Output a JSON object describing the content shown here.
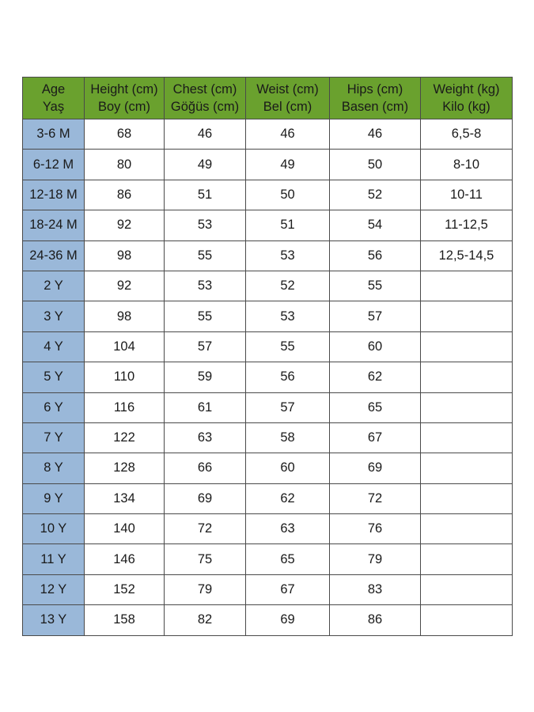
{
  "table": {
    "header": [
      [
        "Age",
        "Yaş"
      ],
      [
        "Height (cm)",
        "Boy (cm)"
      ],
      [
        "Chest (cm)",
        "Göğüs (cm)"
      ],
      [
        "Weist (cm)",
        "Bel (cm)"
      ],
      [
        "Hips (cm)",
        "Basen (cm)"
      ],
      [
        "Weight (kg)",
        "Kilo (kg)"
      ]
    ],
    "rows": [
      [
        "3-6 M",
        68,
        46,
        46,
        46,
        "6,5-8"
      ],
      [
        "6-12 M",
        80,
        49,
        49,
        50,
        "8-10"
      ],
      [
        "12-18 M",
        86,
        51,
        50,
        52,
        "10-11"
      ],
      [
        "18-24 M",
        92,
        53,
        51,
        54,
        "11-12,5"
      ],
      [
        "24-36 M",
        98,
        55,
        53,
        56,
        "12,5-14,5"
      ],
      [
        "2 Y",
        92,
        53,
        52,
        55
      ],
      [
        "3 Y",
        98,
        55,
        53,
        57
      ],
      [
        "4 Y",
        104,
        57,
        55,
        60
      ],
      [
        "5 Y",
        110,
        59,
        56,
        62
      ],
      [
        "6 Y",
        116,
        61,
        57,
        65
      ],
      [
        "7 Y",
        122,
        63,
        58,
        67
      ],
      [
        "8 Y",
        128,
        66,
        60,
        69
      ],
      [
        "9 Y",
        134,
        69,
        62,
        72
      ],
      [
        "10 Y",
        140,
        72,
        63,
        76
      ],
      [
        "11 Y",
        146,
        75,
        65,
        79
      ],
      [
        "12 Y",
        152,
        79,
        67,
        83
      ],
      [
        "13 Y",
        158,
        82,
        69,
        86
      ]
    ]
  }
}
